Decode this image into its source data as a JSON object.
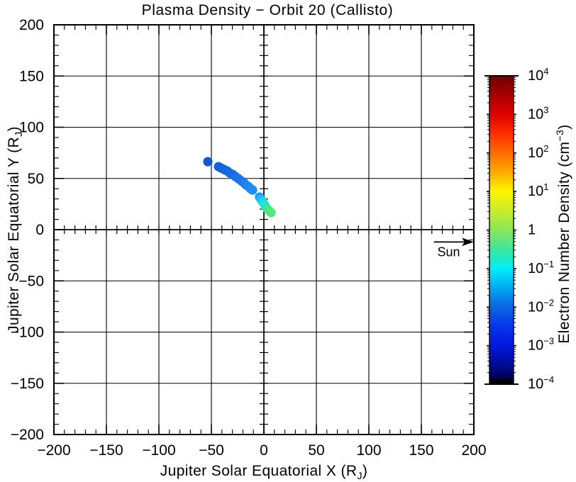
{
  "title": "Plasma Density − Orbit 20 (Callisto)",
  "colors": {
    "background": "#ffffff",
    "axis": "#000000"
  },
  "chart_data": {
    "type": "scatter",
    "title": "Plasma Density − Orbit 20 (Callisto)",
    "xlabel": {
      "pre": "Jupiter Solar Equatorial X (R",
      "sub": "J",
      "post": ")"
    },
    "ylabel": {
      "pre": "Jupiter Solar Equatorial Y (R",
      "sub": "J",
      "post": ")"
    },
    "xlim": [
      -200,
      200
    ],
    "ylim": [
      -200,
      200
    ],
    "x_ticks": [
      -200,
      -150,
      -100,
      -50,
      0,
      50,
      100,
      150,
      200
    ],
    "y_ticks": [
      -200,
      -150,
      -100,
      -50,
      0,
      50,
      100,
      150,
      200
    ],
    "minor_tick_step": 10,
    "grid": true,
    "points": [
      {
        "x": -53.4,
        "y": 66.4,
        "c": "#1158d0",
        "n_cm3": 0.003
      },
      {
        "x": -43.2,
        "y": 61.5,
        "c": "#1460d8",
        "n_cm3": 0.004
      },
      {
        "x": -40.5,
        "y": 60.1,
        "c": "#1460d8",
        "n_cm3": 0.004
      },
      {
        "x": -37.8,
        "y": 58.7,
        "c": "#1565dc",
        "n_cm3": 0.004
      },
      {
        "x": -35.1,
        "y": 57.4,
        "c": "#1565dc",
        "n_cm3": 0.005
      },
      {
        "x": -32.4,
        "y": 55.3,
        "c": "#176ade",
        "n_cm3": 0.005
      },
      {
        "x": -29.7,
        "y": 53.9,
        "c": "#176ade",
        "n_cm3": 0.005
      },
      {
        "x": -27.0,
        "y": 51.8,
        "c": "#1870e2",
        "n_cm3": 0.006
      },
      {
        "x": -24.3,
        "y": 49.8,
        "c": "#1a74e6",
        "n_cm3": 0.006
      },
      {
        "x": -21.6,
        "y": 47.7,
        "c": "#1b78e8",
        "n_cm3": 0.007
      },
      {
        "x": -18.9,
        "y": 45.6,
        "c": "#1c7cea",
        "n_cm3": 0.007
      },
      {
        "x": -16.9,
        "y": 43.5,
        "c": "#1d80ec",
        "n_cm3": 0.008
      },
      {
        "x": -14.9,
        "y": 42.2,
        "c": "#1e84ee",
        "n_cm3": 0.008
      },
      {
        "x": -12.8,
        "y": 40.1,
        "c": "#1e88f0",
        "n_cm3": 0.009
      },
      {
        "x": -10.8,
        "y": 38.7,
        "c": "#1e8cf2",
        "n_cm3": 0.01
      },
      {
        "x": -4.1,
        "y": 31.8,
        "c": "#1e96f2",
        "n_cm3": 0.012
      },
      {
        "x": -2.7,
        "y": 29.7,
        "c": "#20b4f0",
        "n_cm3": 0.02
      },
      {
        "x": -1.4,
        "y": 27.6,
        "c": "#22ccf0",
        "n_cm3": 0.04
      },
      {
        "x": -0.1,
        "y": 25.6,
        "c": "#1edce8",
        "n_cm3": 0.06
      },
      {
        "x": 1.4,
        "y": 22.8,
        "c": "#2ee2c8",
        "n_cm3": 0.1
      },
      {
        "x": 3.4,
        "y": 20.0,
        "c": "#3ce6a0",
        "n_cm3": 0.18
      },
      {
        "x": 5.4,
        "y": 18.0,
        "c": "#48e488",
        "n_cm3": 0.25
      },
      {
        "x": 6.8,
        "y": 16.6,
        "c": "#52e87e",
        "n_cm3": 0.3
      }
    ],
    "sun_annotation": {
      "label": "Sun",
      "arrow_y": -12,
      "arrow_x_start": 162,
      "arrow_x_end": 200,
      "label_x": 176,
      "label_y": -26
    },
    "colorbar": {
      "label": {
        "pre": "Electron Number Density (cm",
        "sup": "−3",
        "post": ")"
      },
      "scale": "log",
      "range_log10": [
        -4,
        4
      ],
      "tick_exponents": [
        4,
        3,
        2,
        1,
        0,
        -1,
        -2,
        -3,
        -4
      ],
      "gradient_top_to_bottom": [
        [
          0.0,
          "#700000"
        ],
        [
          0.0625,
          "#a80000"
        ],
        [
          0.125,
          "#e00000"
        ],
        [
          0.1875,
          "#ff2e00"
        ],
        [
          0.25,
          "#ff6c00"
        ],
        [
          0.3125,
          "#ffaa00"
        ],
        [
          0.375,
          "#fdf500"
        ],
        [
          0.4375,
          "#c8ec28"
        ],
        [
          0.5,
          "#8ce65a"
        ],
        [
          0.5625,
          "#3ee69e"
        ],
        [
          0.625,
          "#00eef8"
        ],
        [
          0.6875,
          "#00a8f0"
        ],
        [
          0.75,
          "#0a66e0"
        ],
        [
          0.8125,
          "#0536ec"
        ],
        [
          0.875,
          "#0018dc"
        ],
        [
          0.9375,
          "#000a96"
        ],
        [
          0.982,
          "#000052"
        ],
        [
          0.986,
          "#000000"
        ],
        [
          1.0,
          "#000000"
        ]
      ]
    }
  }
}
